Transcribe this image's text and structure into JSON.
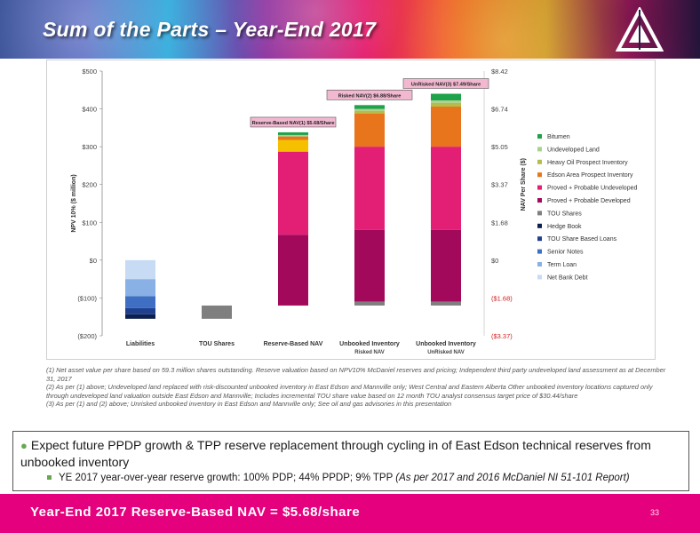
{
  "slide": {
    "title": "Sum of the Parts – Year-End 2017",
    "footer": "Year-End 2017 Reserve-Based NAV = $5.68/share",
    "page_number": "33"
  },
  "colors": {
    "banner_accent": "#e5007e",
    "footer_bar": "#e5007e",
    "label_box": "#f2b8d0"
  },
  "chart_data": {
    "type": "bar",
    "stacked": true,
    "waterfall": true,
    "ylabel": "NPV 10% ($ million)",
    "ylabel_right": "NAV Per Share ($)",
    "ylim": [
      -200,
      500
    ],
    "y_ticks": [
      "$500",
      "$400",
      "$300",
      "$200",
      "$100",
      "$0",
      "($100)",
      "($200)"
    ],
    "right_ticks": [
      {
        "value": 500,
        "label": "$8.42",
        "negative": false
      },
      {
        "value": 400,
        "label": "$6.74",
        "negative": false
      },
      {
        "value": 300,
        "label": "$5.05",
        "negative": false
      },
      {
        "value": 200,
        "label": "$3.37",
        "negative": false
      },
      {
        "value": 100,
        "label": "$1.68",
        "negative": false
      },
      {
        "value": 0,
        "label": "$0",
        "negative": false
      },
      {
        "value": -100,
        "label": "($1.68)",
        "negative": true
      },
      {
        "value": -200,
        "label": "($3.37)",
        "negative": true
      }
    ],
    "categories": [
      {
        "label": "Liabilities",
        "sub": ""
      },
      {
        "label": "TOU Shares",
        "sub": ""
      },
      {
        "label": "Reserve-Based NAV",
        "sub": ""
      },
      {
        "label": "Unbooked Inventory",
        "sub": "Risked NAV"
      },
      {
        "label": "Unbooked Inventory",
        "sub": "UnRisked NAV"
      }
    ],
    "series": [
      {
        "name": "Bitumen",
        "color": "#1fa34a",
        "values": [
          {
            "cat": 2,
            "from": 0,
            "to": 0
          },
          {
            "cat": 3,
            "from": 0,
            "to": 0
          },
          {
            "cat": 4,
            "from": 422,
            "to": 440
          }
        ]
      },
      {
        "name": "Undeveloped Land",
        "color": "#a9d18e",
        "values": [
          {
            "cat": 2,
            "from": 327,
            "to": 331
          },
          {
            "cat": 3,
            "from": 395,
            "to": 400
          },
          {
            "cat": 4,
            "from": 416,
            "to": 422
          }
        ]
      },
      {
        "name": "Heavy Oil Prospect Inventory",
        "color": "#b5bd4a",
        "values": [
          {
            "cat": 3,
            "from": 388,
            "to": 395
          },
          {
            "cat": 4,
            "from": 406,
            "to": 416
          }
        ]
      },
      {
        "name": "Edson Area Prospect Inventory",
        "color": "#e8741c",
        "values": [
          {
            "cat": 3,
            "from": 300,
            "to": 388
          },
          {
            "cat": 4,
            "from": 300,
            "to": 406
          }
        ]
      },
      {
        "name": "Proved + Probable Undeveloped",
        "color": "#e21f74",
        "values": [
          {
            "cat": 2,
            "from": 67,
            "to": 287
          },
          {
            "cat": 3,
            "from": 80,
            "to": 300
          },
          {
            "cat": 4,
            "from": 80,
            "to": 300
          }
        ]
      },
      {
        "name": "Proved + Probable Developed",
        "color": "#a3095a",
        "values": [
          {
            "cat": 2,
            "from": -120,
            "to": 67
          },
          {
            "cat": 3,
            "from": -110,
            "to": 80
          },
          {
            "cat": 4,
            "from": -110,
            "to": 80
          }
        ]
      },
      {
        "name": "TOU Shares",
        "color": "#7f7f7f",
        "values": [
          {
            "cat": 1,
            "from": -155,
            "to": -120
          },
          {
            "cat": 3,
            "from": -120,
            "to": -110
          },
          {
            "cat": 4,
            "from": -120,
            "to": -110
          }
        ]
      },
      {
        "name": "Hedge Book",
        "color": "#0d1f4e",
        "values": [
          {
            "cat": 0,
            "from": -155,
            "to": -143
          }
        ]
      },
      {
        "name": "TOU Share Based Loans",
        "color": "#1f3f8f",
        "values": [
          {
            "cat": 0,
            "from": -143,
            "to": -127
          }
        ]
      },
      {
        "name": "Senior Notes",
        "color": "#3f6fc2",
        "values": [
          {
            "cat": 0,
            "from": -127,
            "to": -95
          }
        ]
      },
      {
        "name": "Term Loan",
        "color": "#8ab1e6",
        "values": [
          {
            "cat": 0,
            "from": -95,
            "to": -50
          }
        ]
      },
      {
        "name": "Net Bank Debt",
        "color": "#c7dbf4",
        "values": [
          {
            "cat": 0,
            "from": -50,
            "to": 0
          }
        ]
      }
    ],
    "top_segments": [
      {
        "cat": 2,
        "color": "#f5c000",
        "from": 287,
        "to": 318
      },
      {
        "cat": 2,
        "color": "#1fa34a",
        "from": 331,
        "to": 338
      },
      {
        "cat": 2,
        "color": "#e8741c",
        "from": 318,
        "to": 327
      },
      {
        "cat": 3,
        "color": "#1fa34a",
        "from": 400,
        "to": 410
      }
    ],
    "annotations": [
      {
        "cat": 2,
        "value": 338,
        "text": "Reserve-Based NAV(1) $5.68/Share"
      },
      {
        "cat": 3,
        "value": 410,
        "text": "Risked NAV(2) $6.88/Share"
      },
      {
        "cat": 4,
        "value": 440,
        "text": "UnRisked NAV(3) $7.49/Share"
      }
    ]
  },
  "footnotes": [
    "(1) Net asset value per share based on 59.3 million shares outstanding. Reserve valuation based on NPV10% McDaniel reserves and pricing; Independent third party undeveloped land assessment as at December 31, 2017",
    "(2) As per (1) above; Undeveloped land replaced with risk-discounted unbooked inventory in East Edson and Mannville only; West Central and Eastern Alberta Other unbooked inventory locations captured only through undeveloped land valuation outside East Edson and Mannville; Includes incremental TOU share value based on 12 month TOU analyst consensus target price of $30.44/share",
    "(3) As per (1) and (2) above; Unrisked unbooked inventory in East Edson and Mannville only; See oil and gas advisories in this presentation"
  ],
  "bullets": {
    "main": "Expect future PPDP growth & TPP reserve replacement through cycling in of East Edson technical reserves from unbooked inventory",
    "sub_text": "YE 2017 year-over-year reserve growth: 100% PDP; 44% PPDP; 9% TPP ",
    "sub_source": "(As per 2017 and 2016 McDaniel NI 51-101 Report)"
  }
}
